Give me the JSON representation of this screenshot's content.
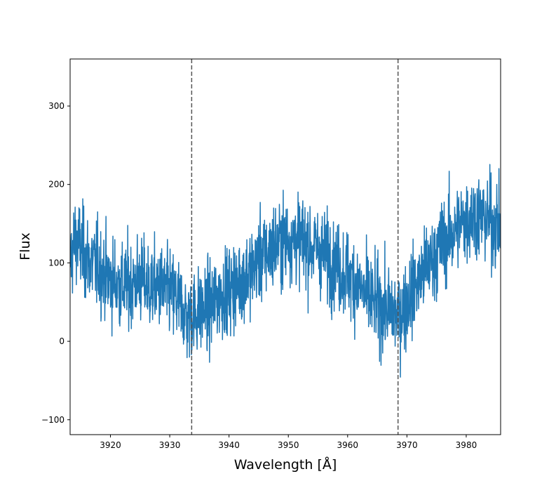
{
  "chart_data": {
    "type": "line",
    "title": "",
    "xlabel": "Wavelength [Å]",
    "ylabel": "Flux",
    "xlim": [
      3913.2,
      3985.8
    ],
    "ylim": [
      -119,
      360
    ],
    "xticks": [
      3920,
      3930,
      3940,
      3950,
      3960,
      3970,
      3980
    ],
    "yticks": [
      -100,
      0,
      100,
      200,
      300
    ],
    "grid": false,
    "line_color": "#1f77b4",
    "vlines": [
      {
        "x": 3933.7,
        "style": "dashed",
        "color": "#555555"
      },
      {
        "x": 3968.5,
        "style": "dashed",
        "color": "#555555"
      }
    ],
    "series": [
      {
        "x": [
          3913.2,
          3914.0,
          3915.0,
          3916.0,
          3917.0,
          3918.0,
          3919.0,
          3920.0,
          3921.0,
          3922.0,
          3923.0,
          3924.0,
          3925.0,
          3926.0,
          3927.0,
          3928.0,
          3929.0,
          3930.0,
          3931.0,
          3932.0,
          3933.0,
          3934.0,
          3935.0,
          3936.0,
          3937.0,
          3938.0,
          3939.0,
          3940.0,
          3941.0,
          3942.0,
          3943.0,
          3944.0,
          3945.0,
          3946.0,
          3947.0,
          3948.0,
          3949.0,
          3950.0,
          3951.0,
          3952.0,
          3953.0,
          3954.0,
          3955.0,
          3956.0,
          3957.0,
          3958.0,
          3959.0,
          3960.0,
          3961.0,
          3962.0,
          3963.0,
          3964.0,
          3965.0,
          3966.0,
          3967.0,
          3968.0,
          3969.0,
          3970.0,
          3971.0,
          3972.0,
          3973.0,
          3974.0,
          3975.0,
          3976.0,
          3977.0,
          3978.0,
          3979.0,
          3980.0,
          3981.0,
          3982.0,
          3983.0,
          3984.0,
          3985.0,
          3985.8
        ],
        "y": [
          100,
          130,
          120,
          105,
          100,
          95,
          85,
          78,
          75,
          70,
          72,
          75,
          80,
          72,
          68,
          70,
          65,
          62,
          55,
          45,
          30,
          35,
          38,
          40,
          45,
          55,
          62,
          65,
          70,
          78,
          85,
          92,
          105,
          110,
          115,
          125,
          128,
          130,
          132,
          130,
          125,
          120,
          118,
          112,
          105,
          98,
          90,
          85,
          78,
          70,
          58,
          52,
          48,
          42,
          38,
          35,
          38,
          50,
          65,
          78,
          90,
          100,
          112,
          125,
          132,
          140,
          148,
          155,
          162,
          160,
          158,
          155,
          150,
          145
        ],
        "noise_amplitude": 55
      }
    ]
  }
}
